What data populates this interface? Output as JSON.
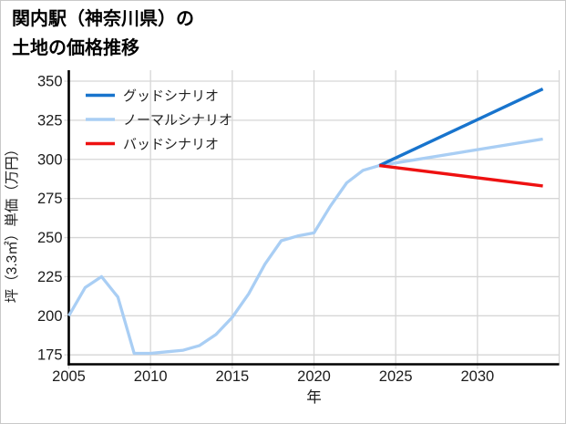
{
  "title": {
    "line1": "関内駅（神奈川県）の",
    "line2": "土地の価格推移"
  },
  "chart_data": {
    "type": "line",
    "title": "関内駅（神奈川県）の土地の価格推移",
    "xlabel": "年",
    "ylabel": "坪（3.3㎡）単価（万円）",
    "xlim": [
      2005,
      2035
    ],
    "ylim": [
      169,
      357
    ],
    "xticks": [
      2005,
      2010,
      2015,
      2020,
      2025,
      2030
    ],
    "yticks": [
      175,
      200,
      225,
      250,
      275,
      300,
      325,
      350
    ],
    "grid": true,
    "legend_position": "upper-left",
    "colors": {
      "good": "#1874cd",
      "normal": "#a9cef4",
      "bad": "#ee1111",
      "grid": "#d6d6d6",
      "axis": "#000000",
      "tick_text": "#1c1c1c",
      "legend_text": "#222222"
    },
    "history": {
      "color_key": "normal",
      "x": [
        2005,
        2006,
        2007,
        2008,
        2009,
        2010,
        2011,
        2012,
        2013,
        2014,
        2015,
        2016,
        2017,
        2018,
        2019,
        2020,
        2021,
        2022,
        2023,
        2024
      ],
      "y": [
        200,
        218,
        225,
        212,
        176,
        176,
        177,
        178,
        181,
        188,
        199,
        214,
        233,
        248,
        251,
        253,
        270,
        285,
        293,
        296
      ]
    },
    "scenarios": [
      {
        "label": "グッドシナリオ",
        "color_key": "good",
        "x": [
          2024,
          2034
        ],
        "y": [
          296,
          345
        ]
      },
      {
        "label": "ノーマルシナリオ",
        "color_key": "normal",
        "x": [
          2024,
          2034
        ],
        "y": [
          296,
          313
        ]
      },
      {
        "label": "バッドシナリオ",
        "color_key": "bad",
        "x": [
          2024,
          2034
        ],
        "y": [
          296,
          283
        ]
      }
    ]
  }
}
